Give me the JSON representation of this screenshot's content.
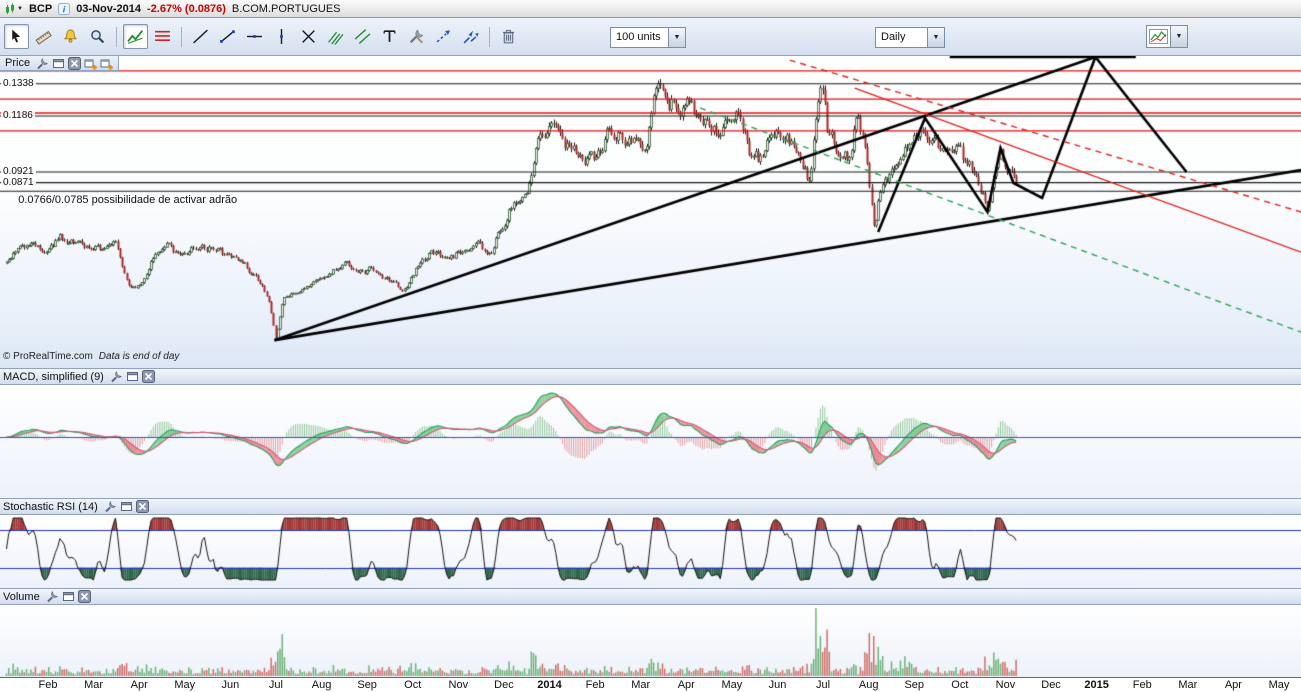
{
  "title_bar": {
    "symbol": "BCP",
    "date": "03-Nov-2014",
    "change": "-2.67% (0.0876)",
    "instrument": "B.COM.PORTUGUES"
  },
  "toolbar": {
    "units_value": "100 units",
    "timeframe_value": "Daily",
    "groups": [
      {
        "name": "pointer-group",
        "tools": [
          {
            "name": "cursor-tool",
            "icon": "cursor",
            "selected": true
          },
          {
            "name": "measure-tool",
            "icon": "ruler",
            "selected": false
          },
          {
            "name": "alarm-tool",
            "icon": "bell",
            "selected": false
          },
          {
            "name": "zoom-tool",
            "icon": "magnifier",
            "selected": false
          }
        ]
      },
      {
        "name": "auto-group",
        "tools": [
          {
            "name": "auto-trendlines-tool",
            "icon": "autotrend",
            "selected": true
          },
          {
            "name": "levels-tool",
            "icon": "levels",
            "selected": false
          }
        ]
      },
      {
        "name": "draw-group",
        "tools": [
          {
            "name": "trend-line-tool",
            "icon": "line",
            "selected": false
          },
          {
            "name": "segment-tool",
            "icon": "segment",
            "selected": false
          },
          {
            "name": "horizontal-line-tool",
            "icon": "hline",
            "selected": false
          },
          {
            "name": "vertical-line-tool",
            "icon": "vline",
            "selected": false
          },
          {
            "name": "cross-tool",
            "icon": "cross",
            "selected": false
          },
          {
            "name": "pitchfork-tool",
            "icon": "pitchfork",
            "selected": false
          },
          {
            "name": "channel-tool",
            "icon": "channel",
            "selected": false
          },
          {
            "name": "text-tool",
            "icon": "text",
            "selected": false
          },
          {
            "name": "drawing-settings-tool",
            "icon": "tools",
            "selected": false
          },
          {
            "name": "dashed-arrow-tool",
            "icon": "dasharrow",
            "selected": false
          },
          {
            "name": "double-arrow-tool",
            "icon": "doublearrow",
            "selected": false
          }
        ]
      },
      {
        "name": "delete-group",
        "tools": [
          {
            "name": "delete-drawings-tool",
            "icon": "trash",
            "selected": false
          }
        ]
      }
    ]
  },
  "price_panel": {
    "label": "Price",
    "level_labels": [
      "0.1338",
      "0.1186",
      "0.0921",
      "0.0871"
    ],
    "annotation": "0.0766/0.0785 possibilidade  de activar adrão",
    "copyright": "© ProRealTime.com",
    "data_note": "Data is end of day"
  },
  "indicators": [
    {
      "label": "MACD, simplified (9)"
    },
    {
      "label": "Stochastic RSI (14)"
    },
    {
      "label": "Volume"
    }
  ],
  "x_axis": {
    "labels": [
      "Feb",
      "Mar",
      "Apr",
      "May",
      "Jun",
      "Jul",
      "Aug",
      "Sep",
      "Oct",
      "Nov",
      "Dec",
      "2014",
      "Feb",
      "Mar",
      "Apr",
      "May",
      "Jun",
      "Jul",
      "Aug",
      "Sep",
      "Oct",
      "Nov",
      "Dec",
      "2015",
      "Feb",
      "Mar",
      "Apr",
      "May"
    ],
    "bold": [
      "2014",
      "2015"
    ]
  },
  "colors": {
    "up_fill": "#eef2ee",
    "up_stroke": "#365c38",
    "down_fill": "#a82828",
    "wick": "#1c1c1c",
    "level_red": "#e01212",
    "level_black": "#1a1a1a",
    "macd_fast": "#2f9d5f",
    "macd_slow": "#d05a7a",
    "zero_line": "#3b4bc8",
    "stoch_line": "#151515",
    "stoch_band": "#2233bb",
    "stoch_over": "#a03636",
    "stoch_under": "#2e6649",
    "vol_up": "rgba(95,170,105,0.9)",
    "vol_down": "rgba(205,95,90,0.9)"
  },
  "chart_data": {
    "type": "candlestick",
    "instrument": "BCP B.COM.PORTUGUES",
    "timeframe": "Daily",
    "last": {
      "date": "03-Nov-2014",
      "close": 0.0876,
      "change_pct": -2.67
    },
    "price_axis": {
      "top": 0.146,
      "bottom": 0.007
    },
    "x_start_frac": 0.005,
    "data_end_frac": 0.781,
    "labeled_levels": [
      0.1338,
      0.1186,
      0.0921,
      0.0871
    ],
    "black_levels": [
      0.1338,
      0.1186,
      0.0921,
      0.0871,
      0.083
    ],
    "red_levels": [
      0.1399,
      0.1266,
      0.12,
      0.1115
    ],
    "annotation_anchor": {
      "x_frac": 0.014,
      "price": 0.0825
    },
    "stoch_bands": [
      80,
      20
    ],
    "macd_params": {
      "fast": 12,
      "slow": 26,
      "signal": 9
    },
    "price_anchors": [
      [
        0.006,
        0.0495
      ],
      [
        0.023,
        0.0599
      ],
      [
        0.035,
        0.0528
      ],
      [
        0.046,
        0.0609
      ],
      [
        0.061,
        0.059
      ],
      [
        0.077,
        0.0552
      ],
      [
        0.088,
        0.059
      ],
      [
        0.1,
        0.0363
      ],
      [
        0.109,
        0.0396
      ],
      [
        0.117,
        0.0514
      ],
      [
        0.127,
        0.0576
      ],
      [
        0.138,
        0.0528
      ],
      [
        0.154,
        0.0576
      ],
      [
        0.169,
        0.0552
      ],
      [
        0.184,
        0.0495
      ],
      [
        0.196,
        0.0434
      ],
      [
        0.206,
        0.0325
      ],
      [
        0.212,
        0.0126
      ],
      [
        0.218,
        0.0325
      ],
      [
        0.231,
        0.0363
      ],
      [
        0.242,
        0.04
      ],
      [
        0.254,
        0.0448
      ],
      [
        0.265,
        0.0495
      ],
      [
        0.277,
        0.0448
      ],
      [
        0.288,
        0.0467
      ],
      [
        0.3,
        0.04
      ],
      [
        0.311,
        0.0363
      ],
      [
        0.323,
        0.0495
      ],
      [
        0.334,
        0.0543
      ],
      [
        0.346,
        0.0514
      ],
      [
        0.357,
        0.0552
      ],
      [
        0.369,
        0.0576
      ],
      [
        0.377,
        0.0524
      ],
      [
        0.384,
        0.0647
      ],
      [
        0.392,
        0.0741
      ],
      [
        0.4,
        0.0812
      ],
      [
        0.407,
        0.0855
      ],
      [
        0.415,
        0.1086
      ],
      [
        0.423,
        0.1119
      ],
      [
        0.43,
        0.1067
      ],
      [
        0.438,
        0.1034
      ],
      [
        0.446,
        0.1006
      ],
      [
        0.453,
        0.0983
      ],
      [
        0.461,
        0.1011
      ],
      [
        0.469,
        0.1124
      ],
      [
        0.477,
        0.1115
      ],
      [
        0.484,
        0.1067
      ],
      [
        0.496,
        0.102
      ],
      [
        0.503,
        0.128
      ],
      [
        0.508,
        0.1328
      ],
      [
        0.515,
        0.1257
      ],
      [
        0.523,
        0.1209
      ],
      [
        0.53,
        0.1233
      ],
      [
        0.538,
        0.1186
      ],
      [
        0.546,
        0.1138
      ],
      [
        0.553,
        0.1091
      ],
      [
        0.561,
        0.1162
      ],
      [
        0.569,
        0.1186
      ],
      [
        0.576,
        0.102
      ],
      [
        0.584,
        0.0973
      ],
      [
        0.592,
        0.1067
      ],
      [
        0.6,
        0.1115
      ],
      [
        0.607,
        0.1067
      ],
      [
        0.615,
        0.1006
      ],
      [
        0.623,
        0.0855
      ],
      [
        0.627,
        0.1167
      ],
      [
        0.632,
        0.1356
      ],
      [
        0.636,
        0.1115
      ],
      [
        0.646,
        0.102
      ],
      [
        0.653,
        0.0973
      ],
      [
        0.659,
        0.1205
      ],
      [
        0.666,
        0.0973
      ],
      [
        0.672,
        0.0656
      ],
      [
        0.676,
        0.0832
      ],
      [
        0.684,
        0.0903
      ],
      [
        0.692,
        0.0973
      ],
      [
        0.699,
        0.1067
      ],
      [
        0.707,
        0.1115
      ],
      [
        0.715,
        0.1067
      ],
      [
        0.723,
        0.102
      ],
      [
        0.73,
        0.1044
      ],
      [
        0.738,
        0.1006
      ],
      [
        0.746,
        0.0935
      ],
      [
        0.753,
        0.0855
      ],
      [
        0.759,
        0.0765
      ],
      [
        0.765,
        0.0903
      ],
      [
        0.769,
        0.102
      ],
      [
        0.773,
        0.0973
      ],
      [
        0.777,
        0.0903
      ],
      [
        0.781,
        0.0865
      ]
    ],
    "drawings": [
      {
        "name": "support-trendline",
        "style": "solid",
        "color": "#000000",
        "width": 2.6,
        "points": [
          [
            0.211,
            0.0126
          ],
          [
            1.0,
            0.093
          ]
        ]
      },
      {
        "name": "resistance-trendline",
        "style": "solid",
        "color": "#000000",
        "width": 2.6,
        "points": [
          [
            0.211,
            0.0126
          ],
          [
            0.842,
            0.1465
          ]
        ]
      },
      {
        "name": "projection-zigzag",
        "style": "solid",
        "color": "#000000",
        "width": 2.6,
        "points": [
          [
            0.675,
            0.0637
          ],
          [
            0.711,
            0.1176
          ],
          [
            0.759,
            0.0732
          ],
          [
            0.769,
            0.1034
          ],
          [
            0.779,
            0.0869
          ],
          [
            0.801,
            0.0798
          ],
          [
            0.842,
            0.1465
          ],
          [
            0.912,
            0.0921
          ]
        ]
      },
      {
        "name": "apex-resistance-line",
        "style": "solid",
        "color": "#000000",
        "width": 2.6,
        "points": [
          [
            0.73,
            0.1465
          ],
          [
            0.873,
            0.1465
          ]
        ]
      },
      {
        "name": "red-channel-line",
        "style": "solid",
        "color": "#e02020",
        "width": 1.4,
        "points": [
          [
            0.657,
            0.1318
          ],
          [
            1.0,
            0.0542
          ]
        ]
      },
      {
        "name": "red-channel-dashed",
        "style": "dashed",
        "color": "#e02020",
        "width": 1.4,
        "points": [
          [
            0.607,
            0.145
          ],
          [
            1.0,
            0.0732
          ]
        ]
      },
      {
        "name": "green-channel-dashed",
        "style": "dashed",
        "color": "#2fa352",
        "width": 1.4,
        "points": [
          [
            0.538,
            0.1224
          ],
          [
            1.0,
            0.0164
          ]
        ]
      }
    ],
    "volume_spikes": [
      {
        "from": 0.626,
        "to": 0.639,
        "mult": 4.8
      },
      {
        "from": 0.408,
        "to": 0.432,
        "mult": 2.1
      },
      {
        "from": 0.66,
        "to": 0.705,
        "mult": 2.0
      },
      {
        "from": 0.497,
        "to": 0.512,
        "mult": 1.7
      },
      {
        "from": 0.755,
        "to": 0.781,
        "mult": 1.6
      }
    ]
  }
}
